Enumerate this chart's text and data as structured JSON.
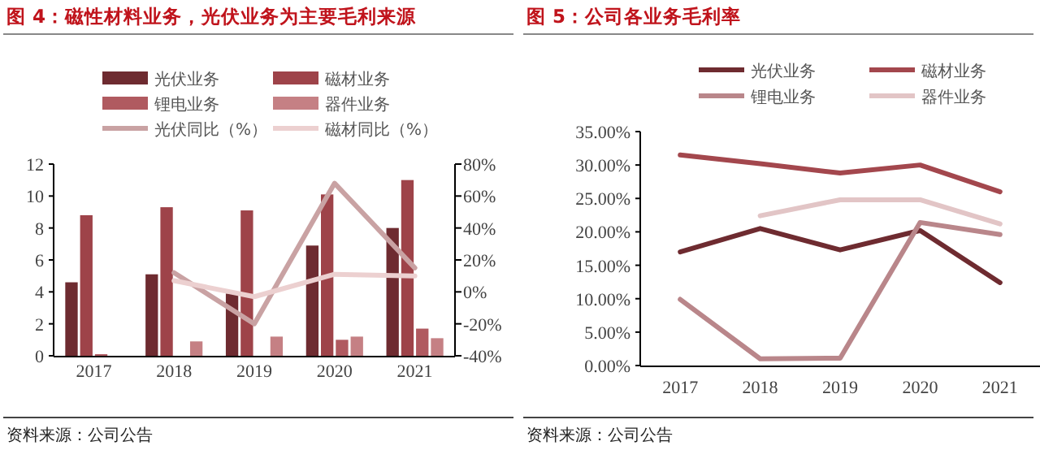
{
  "chart_data": [
    {
      "type": "bar",
      "title": "图 4：磁性材料业务，光伏业务为主要毛利来源",
      "categories": [
        "2017",
        "2018",
        "2019",
        "2020",
        "2021"
      ],
      "series": [
        {
          "name": "光伏业务",
          "color": "#6e2b30",
          "values": [
            4.6,
            5.1,
            3.9,
            6.9,
            8.0
          ]
        },
        {
          "name": "磁材业务",
          "color": "#9e4349",
          "values": [
            8.8,
            9.3,
            9.1,
            10.1,
            11.0
          ]
        },
        {
          "name": "锂电业务",
          "color": "#b05a60",
          "values": [
            0.1,
            null,
            null,
            1.0,
            1.7
          ]
        },
        {
          "name": "器件业务",
          "color": "#c58084",
          "values": [
            null,
            0.9,
            1.2,
            1.2,
            1.1
          ]
        },
        {
          "name": "光伏同比（%）",
          "type": "line",
          "axis": "y2",
          "color": "#c9a2a3",
          "values": [
            null,
            12,
            -20,
            68,
            15
          ]
        },
        {
          "name": "磁材同比（%）",
          "type": "line",
          "axis": "y2",
          "color": "#ecd0d0",
          "values": [
            null,
            7,
            -3,
            11,
            10
          ]
        }
      ],
      "ylim": [
        0,
        12
      ],
      "yticks": [
        0,
        2,
        4,
        6,
        8,
        10,
        12
      ],
      "y2lim": [
        -40,
        80
      ],
      "y2ticks": [
        {
          "value": -40,
          "label": "-40%"
        },
        {
          "value": -20,
          "label": "-20%"
        },
        {
          "value": 0,
          "label": "0%"
        },
        {
          "value": 20,
          "label": "20%"
        },
        {
          "value": 40,
          "label": "40%"
        },
        {
          "value": 60,
          "label": "60%"
        },
        {
          "value": 80,
          "label": "80%"
        }
      ],
      "legend": "top",
      "grid": false,
      "annotations": [
        "资料来源：公司公告"
      ]
    },
    {
      "type": "line",
      "title": "图 5：公司各业务毛利率",
      "categories": [
        "2017",
        "2018",
        "2019",
        "2020",
        "2021"
      ],
      "series": [
        {
          "name": "光伏业务",
          "color": "#6e2b30",
          "values": [
            17.0,
            20.5,
            17.3,
            20.2,
            12.4
          ]
        },
        {
          "name": "磁材业务",
          "color": "#a3474d",
          "values": [
            31.5,
            30.2,
            28.8,
            30.0,
            26.0
          ]
        },
        {
          "name": "锂电业务",
          "color": "#b9868a",
          "values": [
            9.9,
            1.0,
            1.1,
            21.4,
            19.6
          ]
        },
        {
          "name": "器件业务",
          "color": "#e2c5c6",
          "values": [
            null,
            22.4,
            24.8,
            24.8,
            21.2
          ]
        }
      ],
      "ylim": [
        0,
        35
      ],
      "yticks": [
        {
          "value": 0,
          "label": "0.00%"
        },
        {
          "value": 5,
          "label": "5.00%"
        },
        {
          "value": 10,
          "label": "10.00%"
        },
        {
          "value": 15,
          "label": "15.00%"
        },
        {
          "value": 20,
          "label": "20.00%"
        },
        {
          "value": 25,
          "label": "25.00%"
        },
        {
          "value": 30,
          "label": "30.00%"
        },
        {
          "value": 35,
          "label": "35.00%"
        }
      ],
      "legend": "top",
      "grid": false,
      "annotations": [
        "资料来源：公司公告"
      ]
    }
  ]
}
